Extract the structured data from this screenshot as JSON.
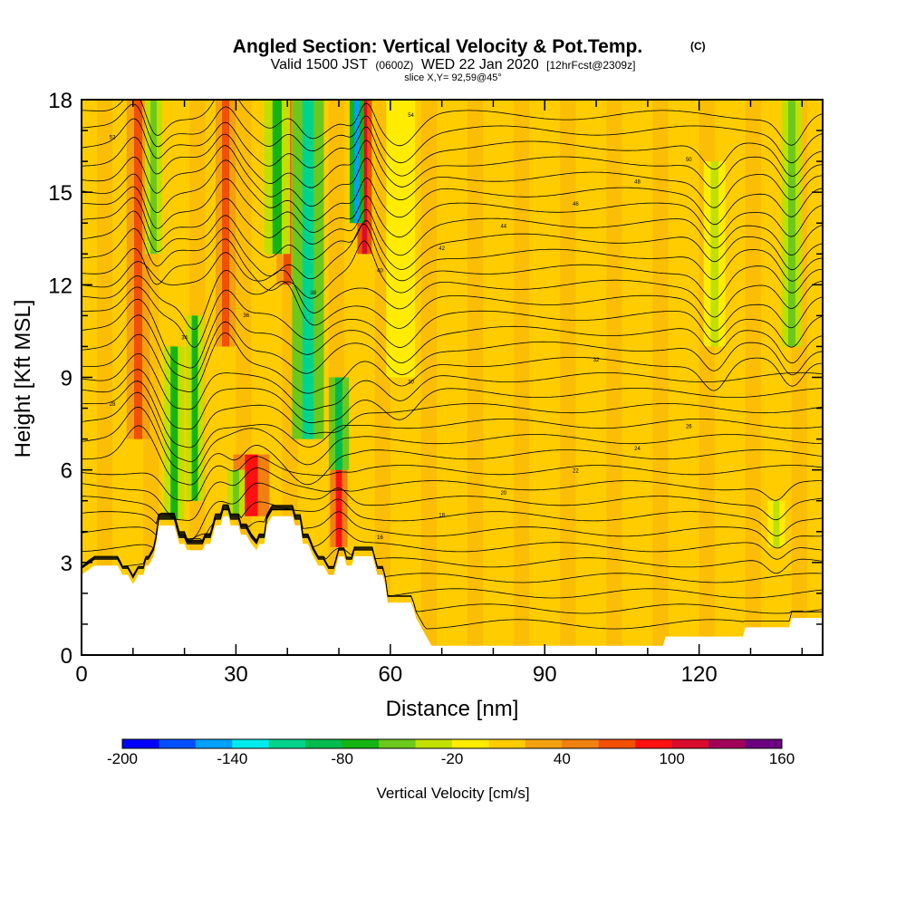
{
  "chart_data": {
    "type": "heatmap",
    "title": "Angled Section: Vertical Velocity & Pot.Temp.",
    "title_mark": "(C)",
    "subtitle_parts": [
      "Valid 1500 JST",
      "(0600Z)",
      "WED 22 Jan 2020",
      "[12hrFcst@2309z]"
    ],
    "slice_label": "slice X,Y= 92,59@45°",
    "xlabel": "Distance [nm]",
    "ylabel": "Height [Kft MSL]",
    "xlim": [
      0,
      144
    ],
    "ylim": [
      0,
      18
    ],
    "x_ticks": [
      0,
      30,
      60,
      90,
      120
    ],
    "y_ticks": [
      0,
      3,
      6,
      9,
      12,
      15,
      18
    ],
    "colorbar": {
      "label": "Vertical Velocity [cm/s]",
      "tick_labels": [
        "-200",
        "-140",
        "-80",
        "-20",
        "40",
        "100",
        "160"
      ],
      "min": -200,
      "max": 160,
      "step": 20,
      "colors": [
        "#0000ff",
        "#0050ff",
        "#00a0ff",
        "#00ecec",
        "#00d48c",
        "#00bc4c",
        "#14b414",
        "#6cc81c",
        "#c0e000",
        "#ffec00",
        "#ffcc00",
        "#f4a010",
        "#f08010",
        "#f05000",
        "#ff1010",
        "#d80c2c",
        "#a0005a",
        "#6c0080"
      ]
    },
    "background_velocity_cm_s": 5,
    "updraft_bands": [
      {
        "x": 11,
        "w": 1.6,
        "ybot": 7,
        "ytop": 18,
        "velocity_cm_s": 70
      },
      {
        "x": 28,
        "w": 1.4,
        "ybot": 10,
        "ytop": 18,
        "velocity_cm_s": 60
      },
      {
        "x": 33,
        "w": 2.5,
        "ybot": 4.5,
        "ytop": 6.5,
        "velocity_cm_s": 90
      },
      {
        "x": 40,
        "w": 1.5,
        "ybot": 12,
        "ytop": 18,
        "velocity_cm_s": 60
      },
      {
        "x": 50,
        "w": 1.2,
        "ybot": 3.5,
        "ytop": 7,
        "velocity_cm_s": 90
      },
      {
        "x": 55,
        "w": 1.0,
        "ybot": 13,
        "ytop": 18,
        "velocity_cm_s": 110
      }
    ],
    "downdraft_bands": [
      {
        "x": 14,
        "w": 1.2,
        "ybot": 13,
        "ytop": 18,
        "velocity_cm_s": -60
      },
      {
        "x": 18,
        "w": 1.4,
        "ybot": 4.4,
        "ytop": 10,
        "velocity_cm_s": -70
      },
      {
        "x": 22,
        "w": 1.2,
        "ybot": 5,
        "ytop": 11,
        "velocity_cm_s": -80
      },
      {
        "x": 30,
        "w": 1.2,
        "ybot": 4.5,
        "ytop": 6,
        "velocity_cm_s": -60
      },
      {
        "x": 38,
        "w": 1.8,
        "ybot": 13,
        "ytop": 18,
        "velocity_cm_s": -80
      },
      {
        "x": 44,
        "w": 2.2,
        "ybot": 7,
        "ytop": 18,
        "velocity_cm_s": -110
      },
      {
        "x": 50,
        "w": 1.4,
        "ybot": 6,
        "ytop": 9,
        "velocity_cm_s": -90
      },
      {
        "x": 53.5,
        "w": 1.0,
        "ybot": 14,
        "ytop": 18,
        "velocity_cm_s": -150
      },
      {
        "x": 62,
        "w": 2.0,
        "ybot": 9,
        "ytop": 18,
        "velocity_cm_s": -20
      },
      {
        "x": 123,
        "w": 1.5,
        "ybot": 10,
        "ytop": 16,
        "velocity_cm_s": -30
      },
      {
        "x": 135,
        "w": 1.2,
        "ybot": 3.5,
        "ytop": 5,
        "velocity_cm_s": -40
      },
      {
        "x": 138,
        "w": 1.4,
        "ybot": 10,
        "ytop": 18,
        "velocity_cm_s": -50
      }
    ],
    "terrain_kft": [
      [
        0,
        2.6
      ],
      [
        2.5,
        2.9
      ],
      [
        7,
        2.9
      ],
      [
        8,
        2.6
      ],
      [
        9,
        2.6
      ],
      [
        10,
        2.3
      ],
      [
        11,
        2.6
      ],
      [
        12,
        2.6
      ],
      [
        12.5,
        2.9
      ],
      [
        13,
        2.9
      ],
      [
        14,
        3.2
      ],
      [
        14.5,
        3.6
      ],
      [
        15,
        4.2
      ],
      [
        18,
        4.2
      ],
      [
        19,
        3.6
      ],
      [
        20,
        3.6
      ],
      [
        20.5,
        3.4
      ],
      [
        23.5,
        3.4
      ],
      [
        24,
        3.6
      ],
      [
        25,
        3.6
      ],
      [
        25.5,
        3.9
      ],
      [
        26,
        4.2
      ],
      [
        27,
        4.2
      ],
      [
        27.5,
        4.5
      ],
      [
        28.5,
        4.5
      ],
      [
        29,
        4.2
      ],
      [
        30.5,
        4.2
      ],
      [
        31,
        3.9
      ],
      [
        32,
        3.9
      ],
      [
        33,
        3.6
      ],
      [
        34,
        3.4
      ],
      [
        34.5,
        3.6
      ],
      [
        35.5,
        3.6
      ],
      [
        36,
        4.2
      ],
      [
        37,
        4.5
      ],
      [
        41,
        4.5
      ],
      [
        41.5,
        4.2
      ],
      [
        42.5,
        4.2
      ],
      [
        43,
        3.6
      ],
      [
        44,
        3.6
      ],
      [
        45,
        3.2
      ],
      [
        46,
        2.9
      ],
      [
        47,
        2.9
      ],
      [
        48,
        2.6
      ],
      [
        49,
        2.6
      ],
      [
        49.5,
        2.9
      ],
      [
        50,
        3.2
      ],
      [
        51,
        3.2
      ],
      [
        51.5,
        2.9
      ],
      [
        52.5,
        2.9
      ],
      [
        53,
        3.2
      ],
      [
        56.5,
        3.2
      ],
      [
        57,
        2.9
      ],
      [
        57.5,
        2.6
      ],
      [
        58.5,
        2.6
      ],
      [
        59,
        2.3
      ],
      [
        59.5,
        1.7
      ],
      [
        64,
        1.7
      ],
      [
        64.5,
        1.5
      ],
      [
        65,
        1.2
      ],
      [
        66,
        0.9
      ],
      [
        67,
        0.6
      ],
      [
        68,
        0.3
      ],
      [
        113,
        0.3
      ],
      [
        113.5,
        0.6
      ],
      [
        128.5,
        0.6
      ],
      [
        129,
        0.9
      ],
      [
        137.5,
        0.9
      ],
      [
        138,
        1.2
      ],
      [
        144,
        1.2
      ]
    ],
    "theta_contour_labels": [
      "10",
      "12",
      "14",
      "16",
      "18",
      "20",
      "22",
      "24",
      "26",
      "28",
      "30",
      "32",
      "34",
      "36",
      "38",
      "40",
      "42",
      "44",
      "46",
      "48",
      "50",
      "52",
      "54"
    ]
  }
}
